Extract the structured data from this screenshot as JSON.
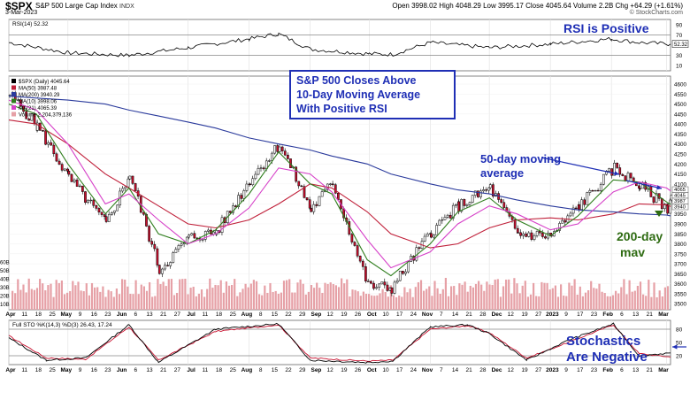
{
  "header": {
    "symbol": "$SPX",
    "name": "S&P 500 Large Cap Index",
    "exchange": "INDX",
    "date": "3-Mar-2023",
    "ohlc": "Open 3998.02  High 4048.29  Low 3995.17  Close 4045.64  Volume 2.2B  Chg +64.29 (+1.61%)",
    "chg_arrow": "▲",
    "source": "© StockCharts.com"
  },
  "annotations": {
    "rsi_positive": "RSI is Positive",
    "closes_above_line1": "S&P 500 Closes Above",
    "closes_above_line2": "10-Day Moving Average",
    "closes_above_line3": "With Positive RSI",
    "ma50_line1": "50-day moving",
    "ma50_line2": "average",
    "ma200_line1": "200-day",
    "ma200_line2": "mav",
    "stoch_line1": "Stochastics",
    "stoch_line2": "Are Negative"
  },
  "colors": {
    "annotation_blue": "#1f2fb5",
    "annotation_green": "#2e6b12",
    "ma50": "#c0203a",
    "ma200": "#2a3a9c",
    "ma10": "#2e7d1c",
    "ma21": "#d640c8",
    "volume": "#e6a0a6",
    "up_candle": "#ffffff",
    "down_candle": "#c8102e"
  },
  "chart_data": [
    {
      "type": "line",
      "panel": "RSI",
      "legend": "RSI(14) 52.32",
      "ylim": [
        0,
        100
      ],
      "yticks": [
        10,
        30,
        50,
        70,
        90
      ],
      "reference_lines": [
        30,
        70
      ],
      "current_value": 52.32,
      "x": [
        "2022-04-01",
        "2022-05-01",
        "2022-06-01",
        "2022-07-01",
        "2022-08-01",
        "2022-08-16",
        "2022-09-01",
        "2022-10-01",
        "2022-10-13",
        "2022-11-01",
        "2022-12-01",
        "2023-01-01",
        "2023-02-01",
        "2023-02-15",
        "2023-03-03"
      ],
      "values": [
        55,
        35,
        30,
        45,
        62,
        72,
        42,
        33,
        32,
        55,
        45,
        52,
        62,
        55,
        52
      ]
    },
    {
      "type": "candlestick",
      "panel": "Price",
      "legend": [
        "$SPX (Daily) 4045.64",
        "MA(50) 3987.48",
        "MA(200) 3940.29",
        "MA(10) 3998.06",
        "MA(21) 4065.39",
        "Volume 2,204,379,136"
      ],
      "yticks": [
        3500,
        3550,
        3600,
        3650,
        3700,
        3750,
        3800,
        3850,
        3900,
        3950,
        4000,
        4050,
        4100,
        4150,
        4200,
        4250,
        4300,
        4350,
        4400,
        4450,
        4500,
        4550,
        4600
      ],
      "ylim": [
        3470,
        4640
      ],
      "volume_ticks": [
        "10B",
        "20B",
        "30B",
        "40B",
        "50B",
        "60B"
      ],
      "right_axis_badges": [
        "4065",
        "4045",
        "3987",
        "3940"
      ],
      "x": [
        "2022-04-01",
        "2022-04-15",
        "2022-05-01",
        "2022-05-20",
        "2022-06-01",
        "2022-06-16",
        "2022-07-01",
        "2022-07-15",
        "2022-08-01",
        "2022-08-16",
        "2022-09-01",
        "2022-09-12",
        "2022-09-30",
        "2022-10-12",
        "2022-11-01",
        "2022-11-15",
        "2022-12-01",
        "2022-12-15",
        "2023-01-01",
        "2023-01-15",
        "2023-02-02",
        "2023-02-15",
        "2023-03-01",
        "2023-03-03"
      ],
      "close": [
        4550,
        4390,
        4130,
        3900,
        4150,
        3670,
        3830,
        3860,
        4120,
        4300,
        3970,
        4110,
        3590,
        3580,
        3860,
        3990,
        4080,
        3850,
        3840,
        3990,
        4180,
        4090,
        3980,
        4045
      ],
      "series": [
        {
          "name": "MA(50)",
          "values": [
            4420,
            4400,
            4300,
            4150,
            4080,
            3990,
            3900,
            3880,
            3920,
            4000,
            4100,
            4080,
            3960,
            3850,
            3780,
            3800,
            3880,
            3920,
            3930,
            3920,
            3950,
            4000,
            3995,
            3987
          ]
        },
        {
          "name": "MA(200)",
          "values": [
            4540,
            4530,
            4520,
            4500,
            4470,
            4440,
            4410,
            4380,
            4330,
            4300,
            4270,
            4240,
            4200,
            4150,
            4100,
            4070,
            4050,
            4020,
            3990,
            3970,
            3960,
            3950,
            3944,
            3940
          ]
        },
        {
          "name": "MA(10)",
          "values": [
            4500,
            4450,
            4200,
            3950,
            4080,
            3850,
            3800,
            3870,
            4050,
            4260,
            4100,
            4050,
            3720,
            3640,
            3800,
            3960,
            4030,
            3920,
            3840,
            3940,
            4120,
            4110,
            4010,
            3998
          ]
        },
        {
          "name": "MA(21)",
          "values": [
            4520,
            4470,
            4300,
            4000,
            4050,
            3920,
            3800,
            3850,
            3980,
            4180,
            4150,
            4060,
            3820,
            3680,
            3760,
            3900,
            3990,
            3950,
            3870,
            3900,
            4060,
            4110,
            4080,
            4065
          ]
        }
      ]
    },
    {
      "type": "line",
      "panel": "Stochastics",
      "legend": "Full STO %K(14,3) %D(3) 26.43, 17.24",
      "ylim": [
        0,
        100
      ],
      "yticks": [
        20,
        50,
        80
      ],
      "reference_lines": [
        20,
        80
      ],
      "x": [
        "2022-04-01",
        "2022-04-20",
        "2022-05-10",
        "2022-06-01",
        "2022-06-16",
        "2022-07-15",
        "2022-08-16",
        "2022-09-01",
        "2022-09-30",
        "2022-10-13",
        "2022-11-01",
        "2022-11-20",
        "2022-12-01",
        "2022-12-20",
        "2023-01-10",
        "2023-02-02",
        "2023-02-15",
        "2023-03-03"
      ],
      "series": [
        {
          "name": "%K",
          "values": [
            60,
            10,
            15,
            90,
            5,
            80,
            92,
            10,
            5,
            8,
            85,
            90,
            70,
            10,
            55,
            92,
            20,
            26.43
          ]
        },
        {
          "name": "%D",
          "values": [
            65,
            15,
            12,
            85,
            10,
            75,
            90,
            15,
            8,
            10,
            80,
            88,
            72,
            15,
            50,
            90,
            25,
            17.24
          ]
        }
      ]
    }
  ],
  "x_axis": {
    "labels": [
      "Apr",
      "11",
      "18",
      "25",
      "May",
      "9",
      "16",
      "23",
      "Jun",
      "6",
      "13",
      "21",
      "27",
      "Jul",
      "11",
      "18",
      "25",
      "Aug",
      "8",
      "15",
      "22",
      "29",
      "Sep",
      "12",
      "19",
      "26",
      "Oct",
      "10",
      "17",
      "24",
      "Nov",
      "7",
      "14",
      "21",
      "28",
      "Dec",
      "12",
      "19",
      "27",
      "2023",
      "9",
      "17",
      "23",
      "Feb",
      "6",
      "13",
      "21",
      "Mar"
    ],
    "bold": [
      "Apr",
      "May",
      "Jun",
      "Jul",
      "Aug",
      "Sep",
      "Oct",
      "Nov",
      "Dec",
      "2023",
      "Feb",
      "Mar"
    ]
  }
}
